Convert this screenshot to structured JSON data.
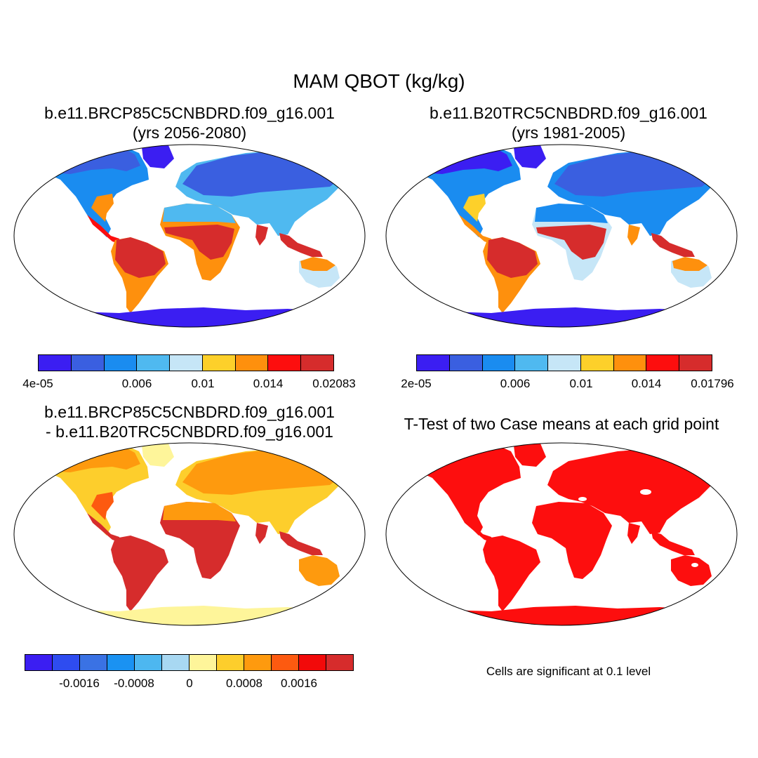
{
  "title": "MAM QBOT (kg/kg)",
  "panels": [
    {
      "title_line1": "b.e11.BRCP85C5CNBDRD.f09_g16.001",
      "title_line2": "(yrs 2056-2080)"
    },
    {
      "title_line1": "b.e11.B20TRC5CNBDRD.f09_g16.001",
      "title_line2": "(yrs 1981-2005)"
    },
    {
      "title_line1": "b.e11.BRCP85C5CNBDRD.f09_g16.001",
      "title_line2": "- b.e11.B20TRC5CNBDRD.f09_g16.001"
    },
    {
      "title_line1": "T-Test of two Case means at each grid point"
    }
  ],
  "colorbars": {
    "case1": {
      "colors": [
        "#3b1ef2",
        "#3a5fe0",
        "#1a8cf0",
        "#4fb9f0",
        "#c6e6f7",
        "#fdd02a",
        "#fe900d",
        "#fd0e0e",
        "#d62c2c"
      ],
      "tick_labels": [
        "4e-05",
        "0.006",
        "0.01",
        "0.014",
        "0.02083"
      ]
    },
    "case2": {
      "colors": [
        "#3b1ef2",
        "#3a5fe0",
        "#1a8cf0",
        "#4fb9f0",
        "#c6e6f7",
        "#fdd02a",
        "#fe900d",
        "#fd0e0e",
        "#d62c2c"
      ],
      "tick_labels": [
        "2e-05",
        "0.006",
        "0.01",
        "0.014",
        "0.01796"
      ]
    },
    "diff": {
      "colors": [
        "#3b1ef2",
        "#2e4cf0",
        "#3a72e4",
        "#1a92f2",
        "#4db7f0",
        "#a8d8f2",
        "#fef59a",
        "#fdce2c",
        "#fe9a0e",
        "#fd5a10",
        "#f20a0a",
        "#d62c2c"
      ],
      "tick_labels": [
        "-0.0016",
        "-0.0008",
        "0",
        "0.0008",
        "0.0016"
      ]
    }
  },
  "significance_note": "Cells are significant at 0.1 level"
}
